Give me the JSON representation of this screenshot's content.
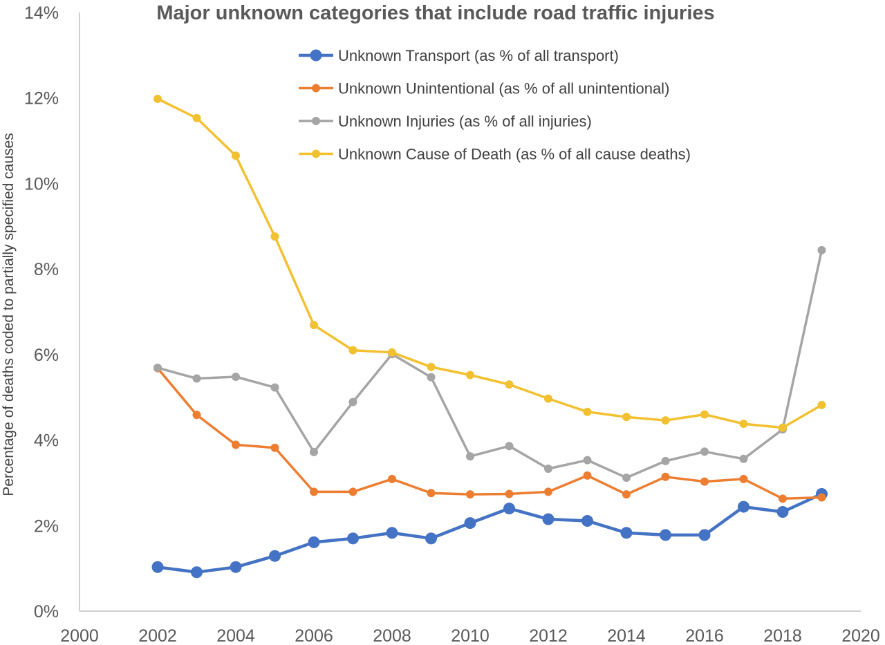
{
  "chart_data": {
    "type": "line",
    "title": "Major unknown categories that include road traffic injuries",
    "xlabel": "",
    "ylabel": "Percentage of deaths coded to partially specified causes",
    "xlim": [
      2000,
      2020
    ],
    "ylim": [
      0,
      14
    ],
    "x_ticks": [
      "2000",
      "2002",
      "2004",
      "2006",
      "2008",
      "2010",
      "2012",
      "2014",
      "2016",
      "2018",
      "2020"
    ],
    "y_ticks": [
      "0%",
      "2%",
      "4%",
      "6%",
      "8%",
      "10%",
      "12%",
      "14%"
    ],
    "grid": false,
    "legend_position": "top-center",
    "x": [
      2002,
      2003,
      2004,
      2005,
      2006,
      2007,
      2008,
      2009,
      2010,
      2011,
      2012,
      2013,
      2014,
      2015,
      2016,
      2017,
      2018,
      2019
    ],
    "series": [
      {
        "name": "Unknown Transport (as % of all transport)",
        "color": "#4472C4",
        "marker": "large-circle",
        "values": [
          1.03,
          0.91,
          1.03,
          1.29,
          1.61,
          1.7,
          1.83,
          1.7,
          2.06,
          2.4,
          2.15,
          2.11,
          1.83,
          1.78,
          1.78,
          2.44,
          2.32,
          2.74
        ]
      },
      {
        "name": "Unknown Unintentional (as % of all unintentional)",
        "color": "#ED7D31",
        "marker": "circle",
        "values": [
          5.68,
          4.59,
          3.89,
          3.82,
          2.79,
          2.79,
          3.09,
          2.76,
          2.73,
          2.74,
          2.79,
          3.17,
          2.73,
          3.14,
          3.03,
          3.09,
          2.63,
          2.66
        ]
      },
      {
        "name": "Unknown Injuries (as % of all  injuries)",
        "color": "#A5A5A5",
        "marker": "circle",
        "values": [
          5.69,
          5.44,
          5.48,
          5.23,
          3.72,
          4.89,
          6.01,
          5.47,
          3.62,
          3.86,
          3.33,
          3.53,
          3.12,
          3.51,
          3.73,
          3.56,
          4.25,
          8.44
        ]
      },
      {
        "name": "Unknown Cause of Death (as % of all cause deaths)",
        "color": "#F2C131",
        "marker": "circle",
        "values": [
          11.98,
          11.53,
          10.65,
          8.76,
          6.69,
          6.1,
          6.05,
          5.71,
          5.52,
          5.3,
          4.97,
          4.66,
          4.54,
          4.46,
          4.6,
          4.38,
          4.29,
          4.82
        ]
      }
    ]
  }
}
